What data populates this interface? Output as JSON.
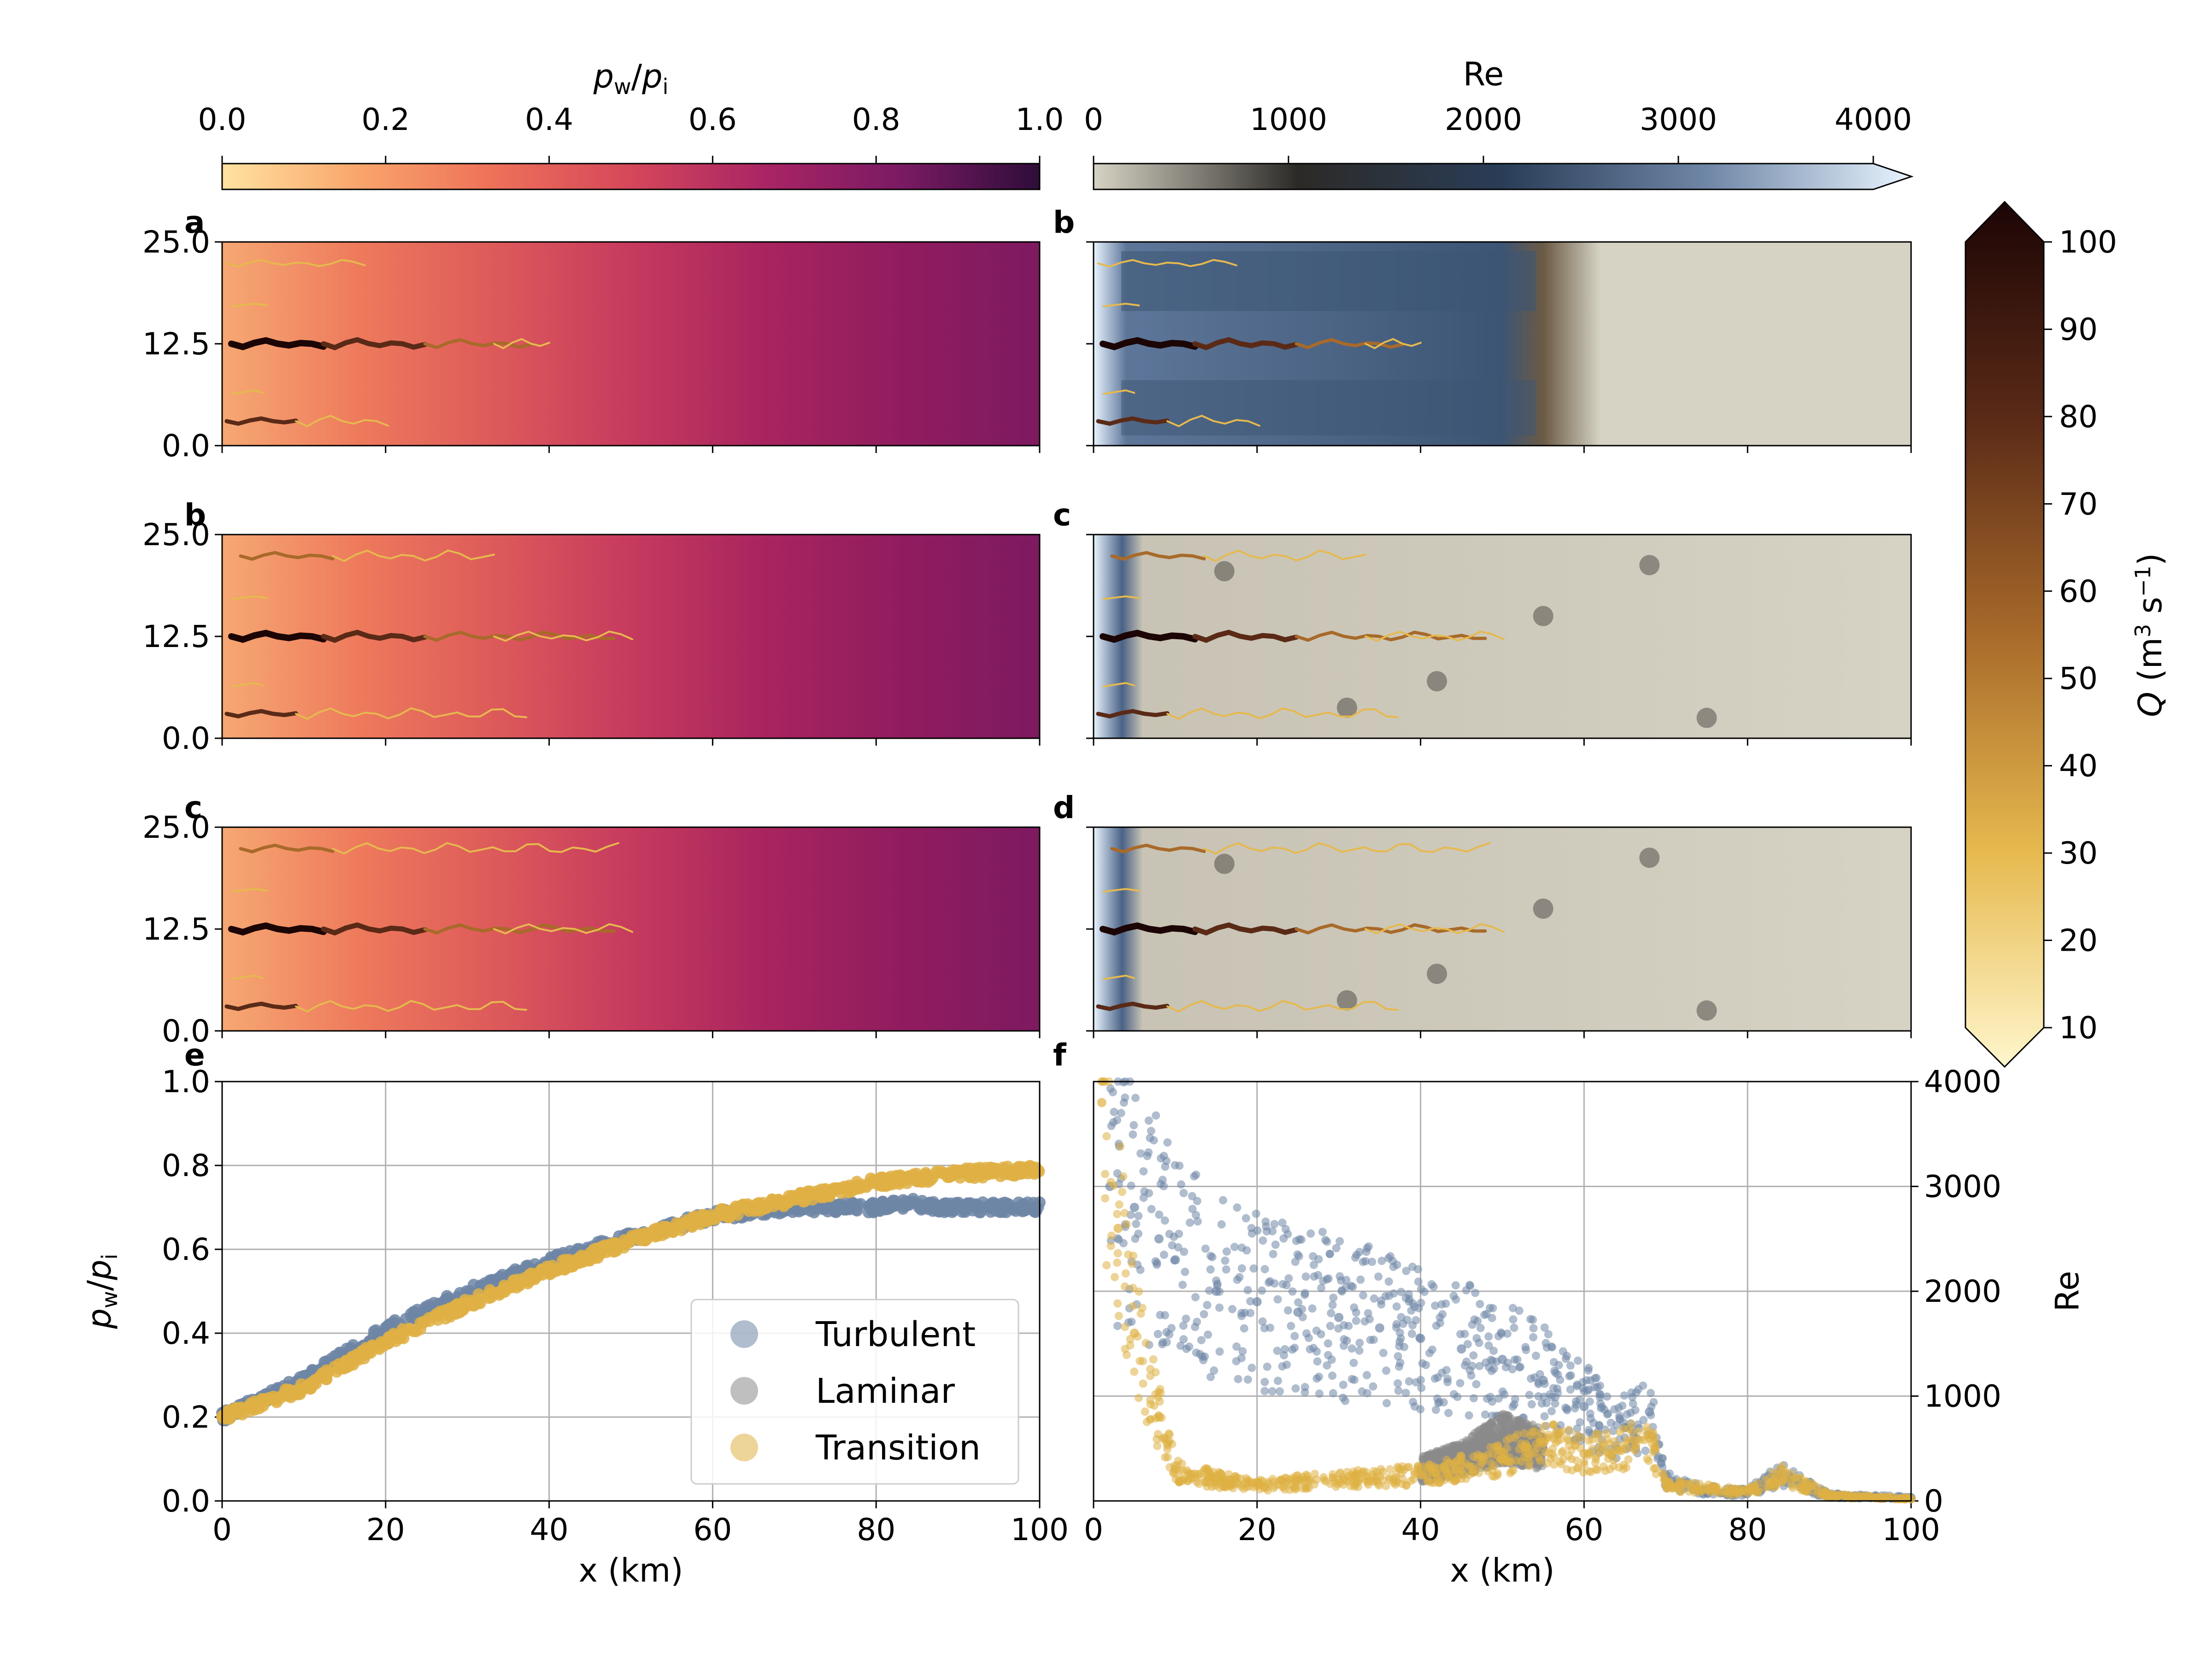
{
  "colors": {
    "pressure_cmap": [
      "#ffe3a0",
      "#f9a56b",
      "#ee7059",
      "#d5475a",
      "#a92465",
      "#7a1a63",
      "#2f0d3a"
    ],
    "re_cmap": [
      "#d6d3c4",
      "#2c2a27",
      "#2a3d57",
      "#6f86a6",
      "#e8f4ff"
    ],
    "q_cmap": [
      "#fff6cc",
      "#e6b94e",
      "#a86a2a",
      "#5a2a17",
      "#1c0505"
    ],
    "turbulent": "#6f86a6",
    "laminar": "#8a8a8a",
    "transition": "#dfb044",
    "grid": "#b0b0b0"
  },
  "colorbars": {
    "pressure": {
      "label_main": "p",
      "label_sub1": "w",
      "label_sub2": "i",
      "ticks": [
        "0.0",
        "0.2",
        "0.4",
        "0.6",
        "0.8",
        "1.0"
      ]
    },
    "reynolds": {
      "label": "Re",
      "ticks": [
        "0",
        "1000",
        "2000",
        "3000",
        "4000"
      ]
    },
    "discharge": {
      "label": "Q (m³ s⁻¹)",
      "label_main": "Q (m",
      "label_sup1": "3",
      "label_mid": " s",
      "label_sup2": "−1",
      "label_end": ")",
      "ticks": [
        "10",
        "20",
        "30",
        "40",
        "50",
        "60",
        "70",
        "80",
        "90",
        "100"
      ]
    }
  },
  "panels": {
    "left_labels": [
      "a",
      "b",
      "c"
    ],
    "right_labels": [
      "b",
      "c",
      "d"
    ],
    "map_yticks": [
      "0.0",
      "12.5",
      "25.0"
    ],
    "bottom_left_label": "e",
    "bottom_right_label": "f"
  },
  "chart_data": [
    {
      "type": "scatter",
      "panel": "e",
      "xlabel": "x (km)",
      "ylabel": "p_w/p_i",
      "xlim": [
        0,
        100
      ],
      "ylim": [
        0,
        1
      ],
      "xticks": [
        "0",
        "20",
        "40",
        "60",
        "80",
        "100"
      ],
      "yticks": [
        "0.0",
        "0.2",
        "0.4",
        "0.6",
        "0.8",
        "1.0"
      ],
      "grid": true,
      "legend": {
        "position": "lower-right",
        "entries": [
          "Turbulent",
          "Laminar",
          "Transition"
        ]
      },
      "series": [
        {
          "name": "Turbulent",
          "x": [
            0,
            10,
            20,
            30,
            40,
            50,
            60,
            70,
            80,
            84,
            88,
            100
          ],
          "y": [
            0.2,
            0.29,
            0.41,
            0.5,
            0.57,
            0.63,
            0.68,
            0.7,
            0.7,
            0.71,
            0.7,
            0.7
          ]
        },
        {
          "name": "Laminar",
          "x": [],
          "y": []
        },
        {
          "name": "Transition",
          "x": [
            0,
            10,
            20,
            30,
            40,
            50,
            60,
            70,
            80,
            90,
            100
          ],
          "y": [
            0.2,
            0.27,
            0.38,
            0.47,
            0.55,
            0.62,
            0.68,
            0.72,
            0.76,
            0.78,
            0.79
          ]
        }
      ]
    },
    {
      "type": "scatter",
      "panel": "f",
      "xlabel": "x (km)",
      "ylabel": "Re",
      "xlim": [
        0,
        100
      ],
      "ylim": [
        0,
        4000
      ],
      "xticks": [
        "0",
        "20",
        "40",
        "60",
        "80",
        "100"
      ],
      "yticks": [
        "0",
        "1000",
        "2000",
        "3000",
        "4000"
      ],
      "grid": true,
      "series": [
        {
          "name": "Turbulent",
          "x": [
            2,
            5,
            8,
            10,
            15,
            20,
            25,
            30,
            35,
            40,
            45,
            50,
            55,
            60,
            65,
            68,
            70,
            75,
            80,
            84,
            90,
            100
          ],
          "y": [
            3000,
            2800,
            2500,
            2300,
            2000,
            1900,
            1800,
            1750,
            1650,
            1550,
            1450,
            1350,
            1150,
            900,
            700,
            850,
            200,
            100,
            80,
            250,
            50,
            30
          ]
        },
        {
          "name": "Laminar",
          "x": [
            40,
            45,
            50,
            55
          ],
          "y": [
            300,
            400,
            600,
            500
          ]
        },
        {
          "name": "Transition",
          "x": [
            1,
            3,
            5,
            8,
            10,
            15,
            20,
            30,
            40,
            50,
            55,
            60,
            65,
            68,
            70,
            80,
            84,
            90,
            100
          ],
          "y": [
            3800,
            2600,
            1600,
            800,
            300,
            200,
            150,
            200,
            250,
            400,
            550,
            450,
            500,
            600,
            150,
            80,
            250,
            50,
            20
          ]
        }
      ]
    }
  ]
}
